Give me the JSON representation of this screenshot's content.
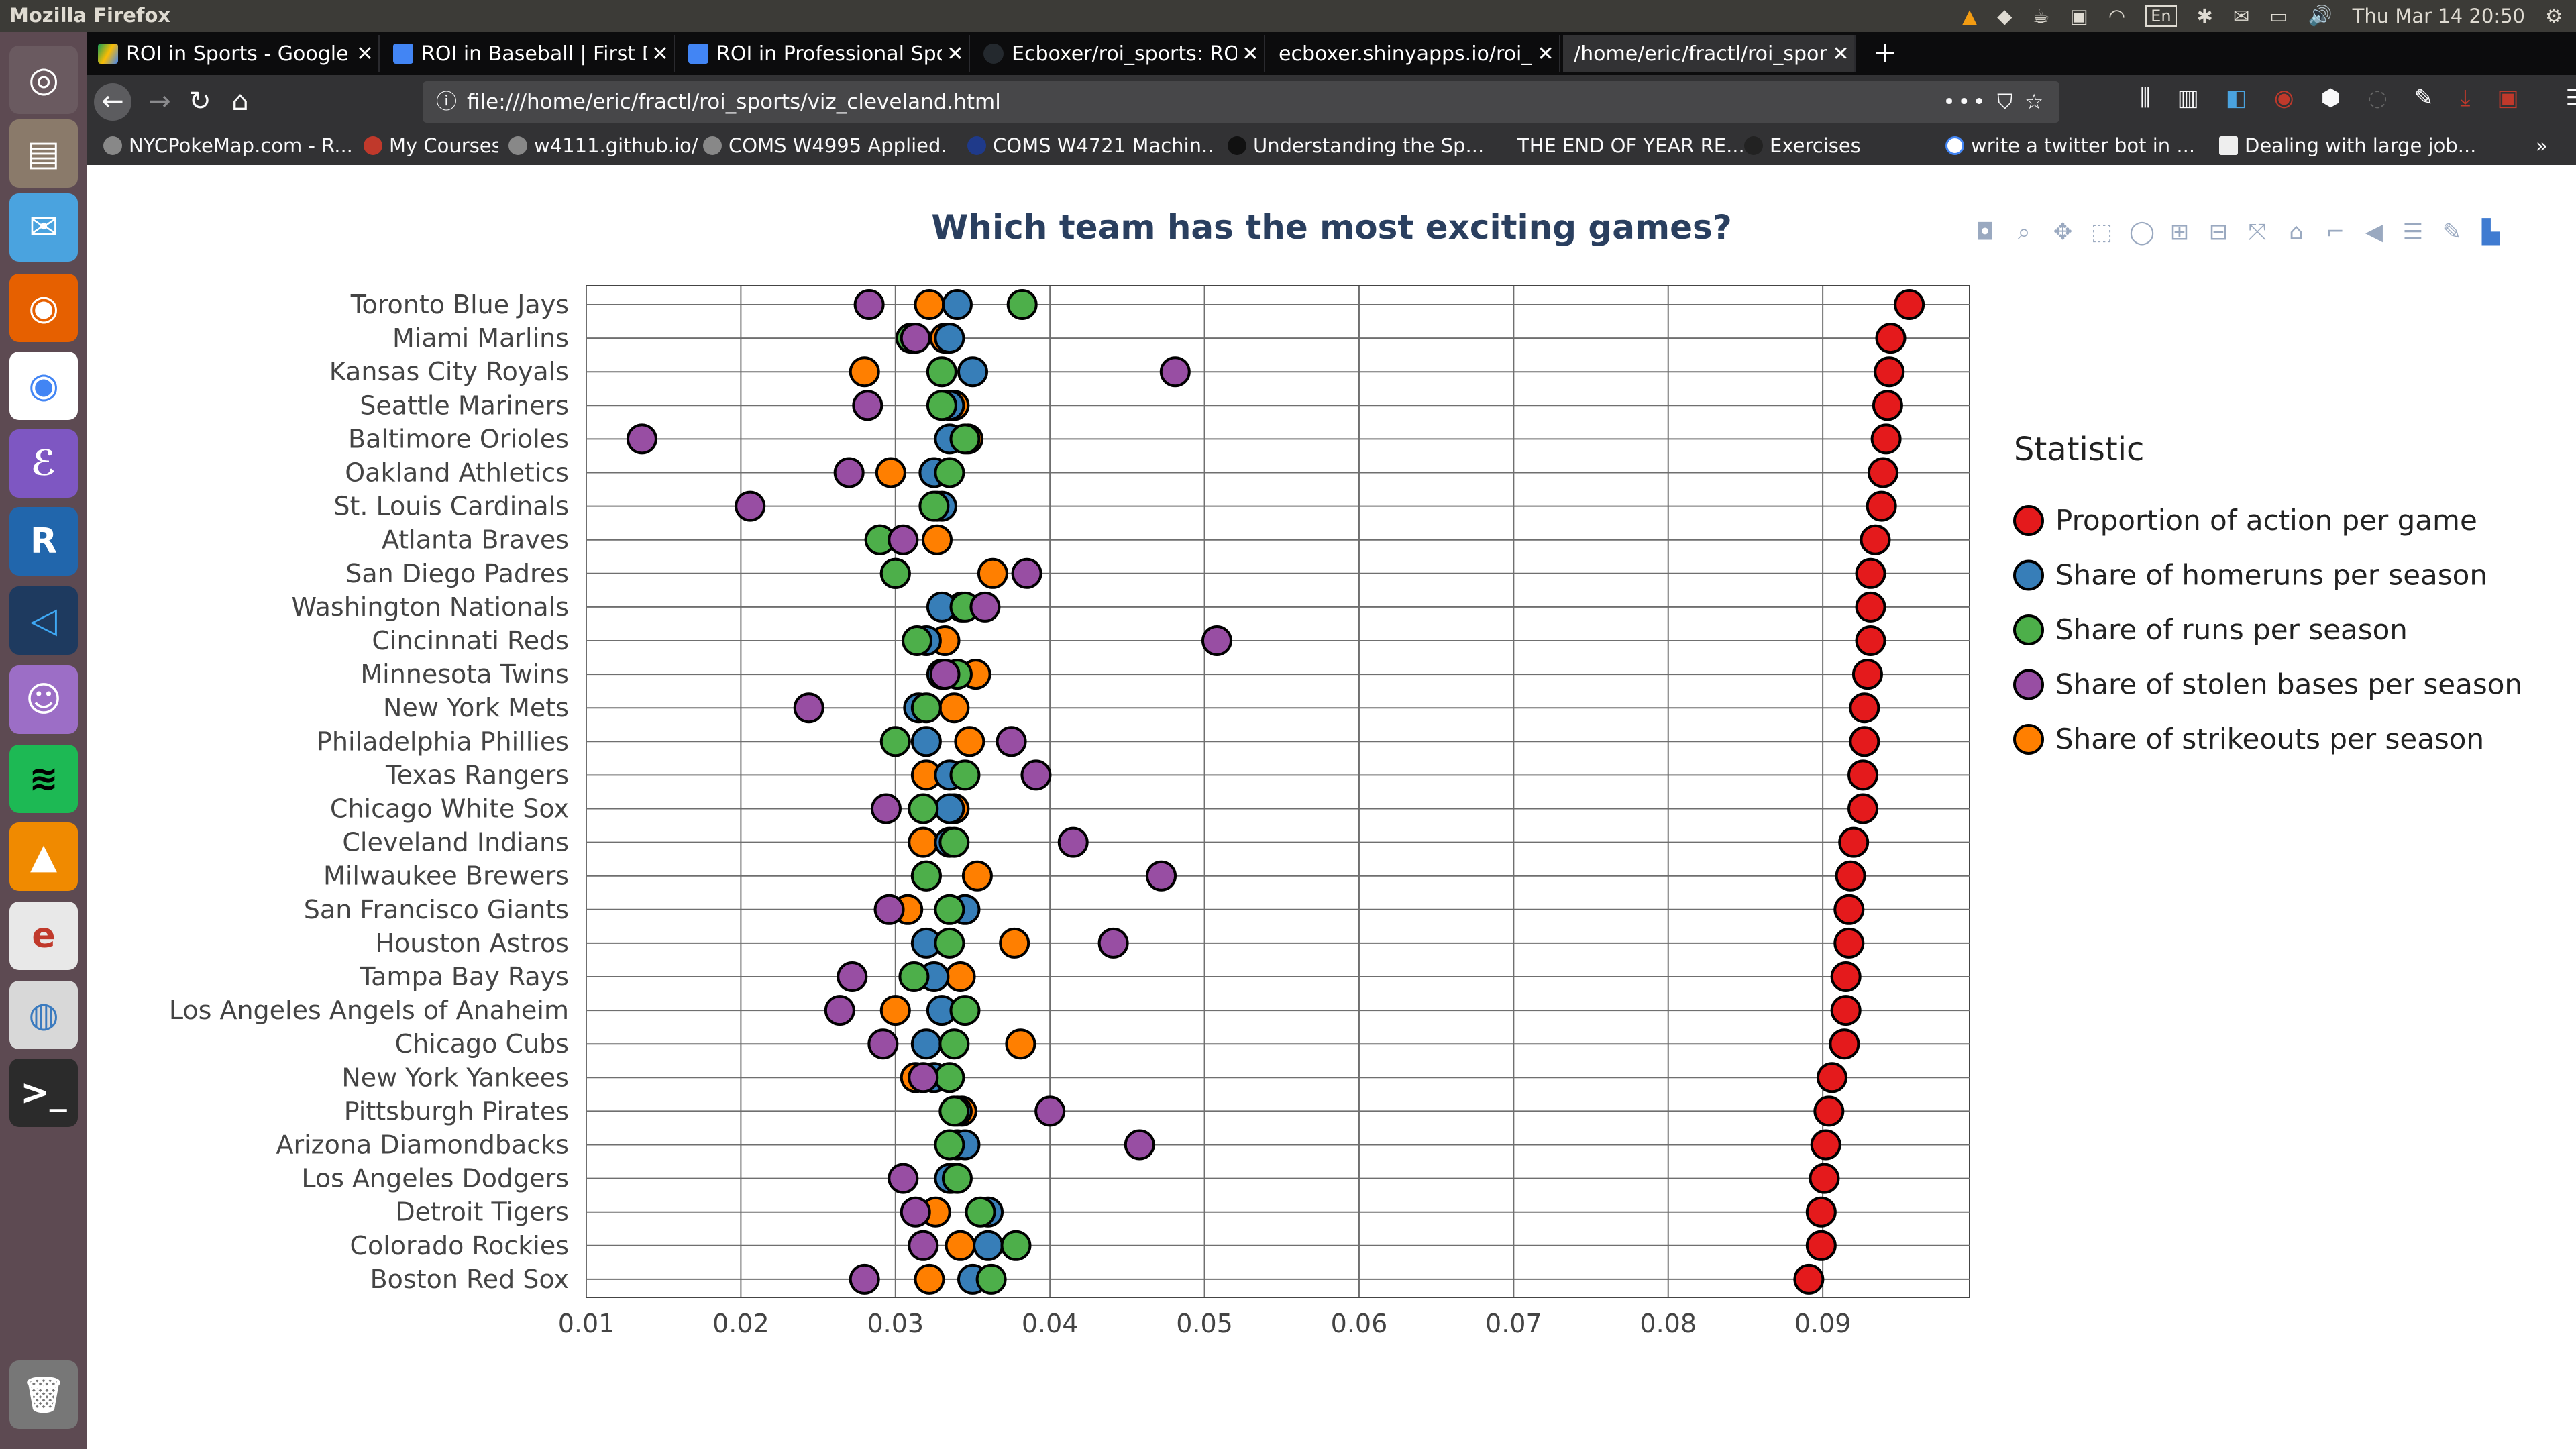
{
  "system": {
    "app_title": "Mozilla Firefox",
    "lang": "En",
    "clock": "Thu Mar 14   20:50"
  },
  "browser": {
    "tabs": [
      {
        "label": "ROI in Sports - Google Dr",
        "active": false,
        "icon": "google-drive-icon"
      },
      {
        "label": "ROI in Baseball | First Dra",
        "active": false,
        "icon": "docs-icon"
      },
      {
        "label": "ROI in Professional Sport",
        "active": false,
        "icon": "docs-icon"
      },
      {
        "label": "Ecboxer/roi_sports: ROI i",
        "active": false,
        "icon": "github-icon"
      },
      {
        "label": "ecboxer.shinyapps.io/roi_spo",
        "active": false,
        "icon": "page-icon"
      },
      {
        "label": "/home/eric/fractl/roi_sports",
        "active": true,
        "icon": "page-icon"
      }
    ],
    "url": "file:///home/eric/fractl/roi_sports/viz_cleveland.html",
    "bookmarks": [
      "NYCPokeMap.com - R...",
      "My Courses",
      "w4111.github.io/",
      "COMS W4995 Applied...",
      "COMS W4721 Machin...",
      "Understanding the Sp...",
      "THE END OF YEAR RE...",
      "Exercises",
      "write a twitter bot in ...",
      "Dealing with large job..."
    ]
  },
  "chart_data": {
    "type": "scatter",
    "title": "Which team has the most exciting games?",
    "xlabel": "",
    "ylabel": "",
    "xlim": [
      0.01,
      0.0995
    ],
    "xticks": [
      0.01,
      0.02,
      0.03,
      0.04,
      0.05,
      0.06,
      0.07,
      0.08,
      0.09
    ],
    "xtick_labels": [
      "0.01",
      "0.02",
      "0.03",
      "0.04",
      "0.05",
      "0.06",
      "0.07",
      "0.08",
      "0.09"
    ],
    "grid": true,
    "legend_title": "Statistic",
    "legend_position": "right",
    "categories": [
      "Toronto Blue Jays",
      "Miami Marlins",
      "Kansas City Royals",
      "Seattle Mariners",
      "Baltimore Orioles",
      "Oakland Athletics",
      "St. Louis Cardinals",
      "Atlanta Braves",
      "San Diego Padres",
      "Washington Nationals",
      "Cincinnati Reds",
      "Minnesota Twins",
      "New York Mets",
      "Philadelphia Phillies",
      "Texas Rangers",
      "Chicago White Sox",
      "Cleveland Indians",
      "Milwaukee Brewers",
      "San Francisco Giants",
      "Houston Astros",
      "Tampa Bay Rays",
      "Los Angeles Angels of Anaheim",
      "Chicago Cubs",
      "New York Yankees",
      "Pittsburgh Pirates",
      "Arizona Diamondbacks",
      "Los Angeles Dodgers",
      "Detroit Tigers",
      "Colorado Rockies",
      "Boston Red Sox"
    ],
    "series": [
      {
        "name": "Proportion of action per game",
        "color": "#e41a1c",
        "values": [
          0.0956,
          0.0944,
          0.0943,
          0.0942,
          0.0941,
          0.0939,
          0.0938,
          0.0934,
          0.0931,
          0.0931,
          0.0931,
          0.0929,
          0.0927,
          0.0927,
          0.0926,
          0.0926,
          0.092,
          0.0918,
          0.0917,
          0.0917,
          0.0915,
          0.0915,
          0.0914,
          0.0906,
          0.0904,
          0.0902,
          0.0901,
          0.0899,
          0.0899,
          0.0891
        ]
      },
      {
        "name": "Share of homeruns per season",
        "color": "#377eb8",
        "values": [
          0.034,
          0.0335,
          0.035,
          0.0335,
          0.0335,
          0.0325,
          0.033,
          0.029,
          0.03,
          0.033,
          0.032,
          0.033,
          0.0315,
          0.032,
          0.0335,
          0.0335,
          0.0335,
          0.032,
          0.0345,
          0.032,
          0.0325,
          0.033,
          0.032,
          0.0325,
          0.034,
          0.0345,
          0.0335,
          0.036,
          0.036,
          0.035
        ]
      },
      {
        "name": "Share of runs per season",
        "color": "#4daf4a",
        "values": [
          0.0382,
          0.031,
          0.033,
          0.033,
          0.0345,
          0.0335,
          0.0325,
          0.029,
          0.03,
          0.0345,
          0.0314,
          0.034,
          0.032,
          0.03,
          0.0345,
          0.0318,
          0.0338,
          0.032,
          0.0335,
          0.0335,
          0.0312,
          0.0345,
          0.0338,
          0.0335,
          0.0338,
          0.0335,
          0.034,
          0.0355,
          0.0378,
          0.0362
        ]
      },
      {
        "name": "Share of stolen bases per season",
        "color": "#984ea3",
        "values": [
          0.0283,
          0.0313,
          0.0481,
          0.0282,
          0.0136,
          0.027,
          0.0206,
          0.0305,
          0.0385,
          0.0358,
          0.0508,
          0.0332,
          0.0244,
          0.0375,
          0.0391,
          0.0294,
          0.0415,
          0.0472,
          0.0296,
          0.0441,
          0.0272,
          0.0264,
          0.0292,
          0.0318,
          0.04,
          0.0458,
          0.0305,
          0.0313,
          0.0318,
          0.028
        ]
      },
      {
        "name": "Share of strikeouts per season",
        "color": "#ff7f00",
        "values": [
          0.0322,
          0.0332,
          0.028,
          0.0338,
          0.0347,
          0.0297,
          0.0327,
          0.0327,
          0.0363,
          0.0343,
          0.0332,
          0.0352,
          0.0338,
          0.0348,
          0.032,
          0.0338,
          0.0318,
          0.0353,
          0.0308,
          0.0377,
          0.0342,
          0.03,
          0.0381,
          0.0313,
          0.0343,
          0.034,
          0.0336,
          0.0326,
          0.0342,
          0.0322
        ]
      }
    ]
  }
}
